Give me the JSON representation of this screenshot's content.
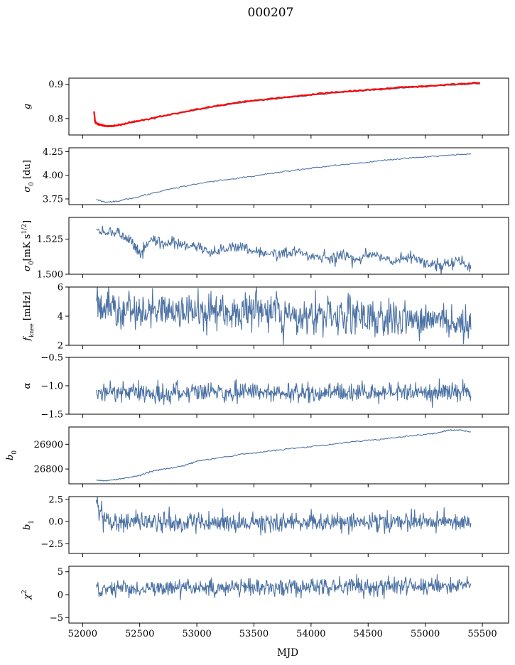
{
  "figure": {
    "title": "000207",
    "xlabel": "MJD"
  },
  "colors": {
    "series_main": "#4c72a4",
    "series_overlay": "#ff0000",
    "axes": "#000000"
  },
  "chart_data": [
    {
      "type": "line",
      "ylabel": "g",
      "xlim": [
        51880,
        55730
      ],
      "ylim": [
        0.752,
        0.918
      ],
      "yticks": [
        0.8,
        0.9
      ],
      "ytick_labels": [
        "0.8",
        "0.9"
      ],
      "xticks": [
        52000,
        52500,
        53000,
        53500,
        54000,
        54500,
        55000,
        55500
      ],
      "show_xtick_labels": false,
      "series": [
        {
          "color": "#4c72a4",
          "x": [
            52100,
            52150,
            52200,
            52250,
            52300,
            52400,
            52500,
            52700,
            53000,
            53300,
            53500,
            53800,
            54000,
            54300,
            54500,
            54800,
            55000,
            55300,
            55480
          ],
          "y": [
            0.796,
            0.781,
            0.777,
            0.777,
            0.779,
            0.786,
            0.793,
            0.806,
            0.826,
            0.842,
            0.851,
            0.861,
            0.868,
            0.877,
            0.882,
            0.889,
            0.893,
            0.899,
            0.902
          ]
        },
        {
          "color": "#ff0000",
          "x": [
            52100,
            52110,
            52120,
            52150,
            52200,
            52250,
            52300,
            52400,
            52500,
            52700,
            53000,
            53300,
            53500,
            53800,
            54000,
            54300,
            54500,
            54800,
            55000,
            55300,
            55480
          ],
          "y": [
            0.821,
            0.79,
            0.786,
            0.782,
            0.778,
            0.778,
            0.78,
            0.787,
            0.794,
            0.807,
            0.827,
            0.844,
            0.853,
            0.863,
            0.87,
            0.879,
            0.884,
            0.891,
            0.895,
            0.901,
            0.904
          ]
        }
      ]
    },
    {
      "type": "line",
      "ylabel": "σ0 [du]",
      "xlim": [
        51880,
        55730
      ],
      "ylim": [
        3.69,
        4.29
      ],
      "yticks": [
        3.75,
        4.0,
        4.25
      ],
      "ytick_labels": [
        "3.75",
        "4.00",
        "4.25"
      ],
      "xticks": [
        52000,
        52500,
        53000,
        53500,
        54000,
        54500,
        55000,
        55500
      ],
      "show_xtick_labels": false,
      "series": [
        {
          "color": "#4c72a4",
          "x": [
            52120,
            52200,
            52300,
            52500,
            52700,
            52900,
            53100,
            53300,
            53500,
            53700,
            53900,
            54100,
            54300,
            54500,
            54700,
            54900,
            55100,
            55300,
            55400
          ],
          "y": [
            3.745,
            3.715,
            3.725,
            3.775,
            3.835,
            3.885,
            3.93,
            3.96,
            3.99,
            4.03,
            4.06,
            4.09,
            4.115,
            4.14,
            4.165,
            4.185,
            4.2,
            4.218,
            4.225
          ]
        }
      ]
    },
    {
      "type": "line",
      "ylabel": "σ0[mK s^1/2]",
      "xlim": [
        51880,
        55730
      ],
      "ylim": [
        1.5,
        1.5405
      ],
      "yticks": [
        1.5,
        1.525
      ],
      "ytick_labels": [
        "1.500",
        "1.525"
      ],
      "xticks": [
        52000,
        52500,
        53000,
        53500,
        54000,
        54500,
        55000,
        55500
      ],
      "show_xtick_labels": false,
      "series": [
        {
          "color": "#4c72a4",
          "x": [
            52120,
            52200,
            52300,
            52400,
            52450,
            52500,
            52600,
            52700,
            52800,
            52900,
            53000,
            53100,
            53200,
            53300,
            53400,
            53500,
            53600,
            53700,
            53800,
            53900,
            54000,
            54100,
            54200,
            54300,
            54400,
            54500,
            54600,
            54700,
            54800,
            54900,
            55000,
            55100,
            55200,
            55300,
            55400
          ],
          "y": [
            1.532,
            1.529,
            1.53,
            1.525,
            1.52,
            1.515,
            1.524,
            1.521,
            1.522,
            1.52,
            1.52,
            1.516,
            1.517,
            1.52,
            1.519,
            1.517,
            1.516,
            1.514,
            1.515,
            1.516,
            1.512,
            1.513,
            1.511,
            1.514,
            1.509,
            1.514,
            1.512,
            1.509,
            1.51,
            1.512,
            1.507,
            1.506,
            1.507,
            1.51,
            1.504
          ]
        }
      ]
    },
    {
      "type": "line",
      "ylabel": "fknee [mHz]",
      "xlim": [
        51880,
        55730
      ],
      "ylim": [
        2,
        6
      ],
      "yticks": [
        2,
        4,
        6
      ],
      "ytick_labels": [
        "2",
        "4",
        "6"
      ],
      "xticks": [
        52000,
        52500,
        53000,
        53500,
        54000,
        54500,
        55000,
        55500
      ],
      "show_xtick_labels": false,
      "noise": {
        "center_start": 4.6,
        "center_end": 3.6,
        "amplitude": 0.65,
        "x_start": 52120,
        "x_end": 55400,
        "points": 700
      }
    },
    {
      "type": "line",
      "ylabel": "α",
      "xlim": [
        51880,
        55730
      ],
      "ylim": [
        -1.5,
        -0.5
      ],
      "yticks": [
        -1.5,
        -1.0,
        -0.5
      ],
      "ytick_labels": [
        "−1.5",
        "−1.0",
        "−0.5"
      ],
      "xticks": [
        52000,
        52500,
        53000,
        53500,
        54000,
        54500,
        55000,
        55500
      ],
      "show_xtick_labels": false,
      "noise": {
        "center_start": -1.12,
        "center_end": -1.12,
        "amplitude": 0.08,
        "x_start": 52120,
        "x_end": 55400,
        "points": 700
      }
    },
    {
      "type": "line",
      "ylabel": "b0",
      "xlim": [
        51880,
        55730
      ],
      "ylim": [
        26740,
        26970
      ],
      "yticks": [
        26800,
        26900
      ],
      "ytick_labels": [
        "26800",
        "26900"
      ],
      "xticks": [
        52000,
        52500,
        53000,
        53500,
        54000,
        54500,
        55000,
        55500
      ],
      "show_xtick_labels": false,
      "series": [
        {
          "color": "#4c72a4",
          "x": [
            52120,
            52200,
            52300,
            52400,
            52500,
            52600,
            52700,
            52800,
            52900,
            53000,
            53200,
            53400,
            53600,
            53800,
            54000,
            54200,
            54400,
            54600,
            54800,
            55000,
            55100,
            55200,
            55300,
            55400
          ],
          "y": [
            26755,
            26752,
            26758,
            26765,
            26775,
            26790,
            26800,
            26805,
            26815,
            26832,
            26845,
            26860,
            26870,
            26882,
            26890,
            26902,
            26912,
            26920,
            26930,
            26940,
            26945,
            26957,
            26958,
            26950
          ]
        }
      ]
    },
    {
      "type": "line",
      "ylabel": "b1",
      "xlim": [
        51880,
        55730
      ],
      "ylim": [
        -3.6,
        2.8
      ],
      "yticks": [
        -2.5,
        0.0,
        2.5
      ],
      "ytick_labels": [
        "−2.5",
        "0.0",
        "2.5"
      ],
      "xticks": [
        52000,
        52500,
        53000,
        53500,
        54000,
        54500,
        55000,
        55500
      ],
      "show_xtick_labels": false,
      "noise": {
        "center_start": -0.1,
        "center_end": -0.1,
        "amplitude": 0.55,
        "x_start": 52120,
        "x_end": 55400,
        "points": 700
      }
    },
    {
      "type": "line",
      "ylabel": "χ2",
      "xlim": [
        51880,
        55730
      ],
      "ylim": [
        -6.2,
        6.2
      ],
      "yticks": [
        -5,
        0,
        5
      ],
      "ytick_labels": [
        "−5",
        "0",
        "5"
      ],
      "xticks": [
        52000,
        52500,
        53000,
        53500,
        54000,
        54500,
        55000,
        55500
      ],
      "xtick_labels": [
        "52000",
        "52500",
        "53000",
        "53500",
        "54000",
        "54500",
        "55000",
        "55500"
      ],
      "show_xtick_labels": true,
      "noise": {
        "center_start": 1.2,
        "center_end": 2.0,
        "amplitude": 0.9,
        "x_start": 52120,
        "x_end": 55400,
        "points": 700
      }
    }
  ]
}
